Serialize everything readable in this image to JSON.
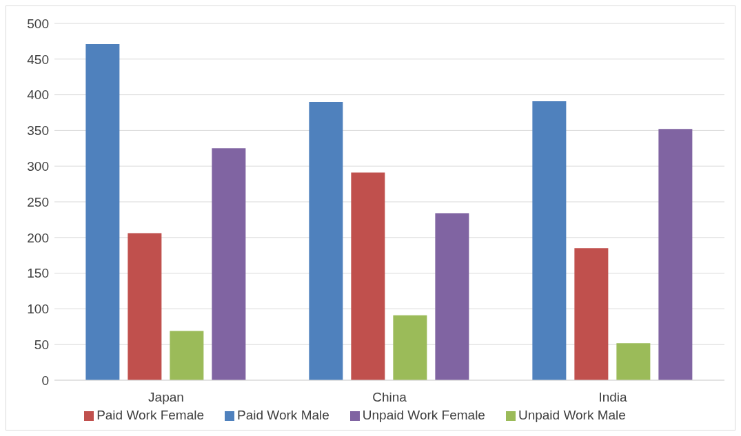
{
  "chart_data": {
    "type": "bar",
    "categories": [
      "Japan",
      "China",
      "India"
    ],
    "series": [
      {
        "name": "Paid Work Male",
        "color": "#4f81bd",
        "values": [
          471,
          390,
          391
        ]
      },
      {
        "name": "Paid Work Female",
        "color": "#c0504d",
        "values": [
          206,
          291,
          185
        ]
      },
      {
        "name": "Unpaid Work Male",
        "color": "#9bbb59",
        "values": [
          69,
          91,
          52
        ]
      },
      {
        "name": "Unpaid Work Female",
        "color": "#8064a2",
        "values": [
          325,
          234,
          352
        ]
      }
    ],
    "ylim": [
      0,
      500
    ],
    "yticks": [
      0,
      50,
      100,
      150,
      200,
      250,
      300,
      350,
      400,
      450,
      500
    ],
    "grid": "y",
    "legend": "bottom"
  }
}
